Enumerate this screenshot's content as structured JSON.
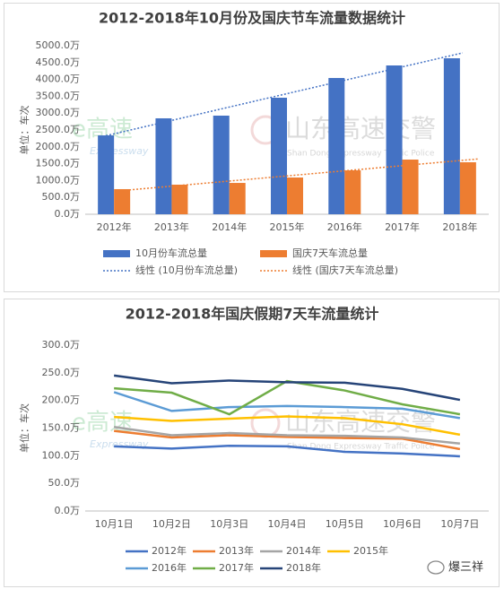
{
  "chart_data": [
    {
      "type": "bar",
      "title": "2012-2018年10月份及国庆节车流量数据统计",
      "ylabel": "单位：车次",
      "categories": [
        "2012年",
        "2013年",
        "2014年",
        "2015年",
        "2016年",
        "2017年",
        "2018年"
      ],
      "series": [
        {
          "name": "10月份车流总量",
          "color": "#4472c4",
          "values": [
            2340,
            2846,
            2926,
            3457,
            4043,
            4415,
            4628
          ],
          "trendline": {
            "name": "线性 (10月份车流总量)",
            "style": "dotted"
          }
        },
        {
          "name": "国庆7天车流总量",
          "color": "#ed7d31",
          "values": [
            745,
            878,
            930,
            1090,
            1303,
            1622,
            1543
          ],
          "trendline": {
            "name": "线性 (国庆7天车流总量)",
            "style": "dotted"
          }
        }
      ],
      "ylim": [
        0,
        5000
      ],
      "yticks": [
        {
          "value": 0,
          "label": "0.0万"
        },
        {
          "value": 500,
          "label": "500.0万"
        },
        {
          "value": 1000,
          "label": "1000.0万"
        },
        {
          "value": 1500,
          "label": "1500.0万"
        },
        {
          "value": 2000,
          "label": "2000.0万"
        },
        {
          "value": 2500,
          "label": "2500.0万"
        },
        {
          "value": 3000,
          "label": "3000.0万"
        },
        {
          "value": 3500,
          "label": "3500.0万"
        },
        {
          "value": 4000,
          "label": "4000.0万"
        },
        {
          "value": 4500,
          "label": "4500.0万"
        },
        {
          "value": 5000,
          "label": "5000.0万"
        }
      ],
      "grid": false,
      "legend": "bottom"
    },
    {
      "type": "line",
      "title": "2012-2018年国庆假期7天车流量统计",
      "ylabel": "单位：车次",
      "categories": [
        "10月1日",
        "10月2日",
        "10月3日",
        "10月4日",
        "10月5日",
        "10月6日",
        "10月7日"
      ],
      "series": [
        {
          "name": "2012年",
          "color": "#4472c4",
          "values": [
            117,
            113,
            118,
            117,
            107,
            104,
            99
          ]
        },
        {
          "name": "2013年",
          "color": "#ed7d31",
          "values": [
            145,
            133,
            137,
            134,
            132,
            131,
            112
          ]
        },
        {
          "name": "2014年",
          "color": "#a5a5a5",
          "values": [
            152,
            137,
            141,
            137,
            136,
            133,
            122
          ]
        },
        {
          "name": "2015年",
          "color": "#ffc000",
          "values": [
            170,
            163,
            167,
            171,
            168,
            157,
            138
          ]
        },
        {
          "name": "2016年",
          "color": "#5b9bd5",
          "values": [
            215,
            181,
            188,
            190,
            188,
            185,
            168
          ]
        },
        {
          "name": "2017年",
          "color": "#70ad47",
          "values": [
            222,
            214,
            175,
            235,
            218,
            193,
            175
          ]
        },
        {
          "name": "2018年",
          "color": "#264478",
          "values": [
            245,
            231,
            236,
            233,
            232,
            221,
            201
          ]
        }
      ],
      "ylim": [
        0,
        300
      ],
      "yticks": [
        {
          "value": 0,
          "label": "0.0万"
        },
        {
          "value": 50,
          "label": "50.0万"
        },
        {
          "value": 100,
          "label": "100.0万"
        },
        {
          "value": 150,
          "label": "150.0万"
        },
        {
          "value": 200,
          "label": "200.0万"
        },
        {
          "value": 250,
          "label": "250.0万"
        },
        {
          "value": 300,
          "label": "300.0万"
        }
      ],
      "grid": false,
      "legend": "bottom"
    }
  ],
  "watermark": {
    "left": "e高速",
    "left_sub": "Expressway",
    "right": "山东高速交警",
    "right_sub": "Shan Dong Expressway Traffic Police"
  },
  "footer": {
    "account": "爆三祥"
  }
}
